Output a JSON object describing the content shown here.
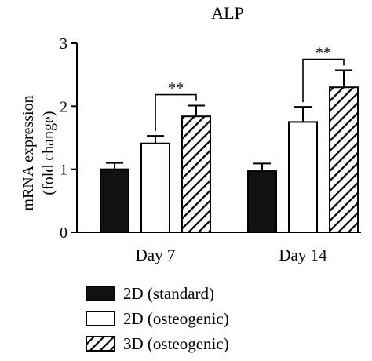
{
  "chart_data": {
    "type": "bar",
    "title": "ALP",
    "ylabel_line1": "mRNA expression",
    "ylabel_line2": "(fold change)",
    "xlabel": "",
    "categories": [
      "Day 7",
      "Day 14"
    ],
    "ylim": [
      0,
      3
    ],
    "yticks": [
      "0",
      "1",
      "2",
      "3"
    ],
    "legend_position": "bottom-left",
    "series": [
      {
        "name": "2D (standard)",
        "fill": "solid-black",
        "values": [
          1.0,
          0.97
        ],
        "errors": [
          0.1,
          0.12
        ]
      },
      {
        "name": "2D (osteogenic)",
        "fill": "white",
        "values": [
          1.41,
          1.75
        ],
        "errors": [
          0.12,
          0.24
        ]
      },
      {
        "name": "3D (osteogenic)",
        "fill": "diagonal-hatch",
        "values": [
          1.84,
          2.3
        ],
        "errors": [
          0.17,
          0.27
        ]
      }
    ],
    "annotations": [
      {
        "text": "**",
        "category": "Day 7",
        "between": [
          "2D (osteogenic)",
          "3D (osteogenic)"
        ]
      },
      {
        "text": "**",
        "category": "Day 14",
        "between": [
          "2D (osteogenic)",
          "3D (osteogenic)"
        ]
      }
    ],
    "colors": {
      "bar_solid": "#111111",
      "bar_open": "#ffffff",
      "stroke": "#000000"
    }
  }
}
